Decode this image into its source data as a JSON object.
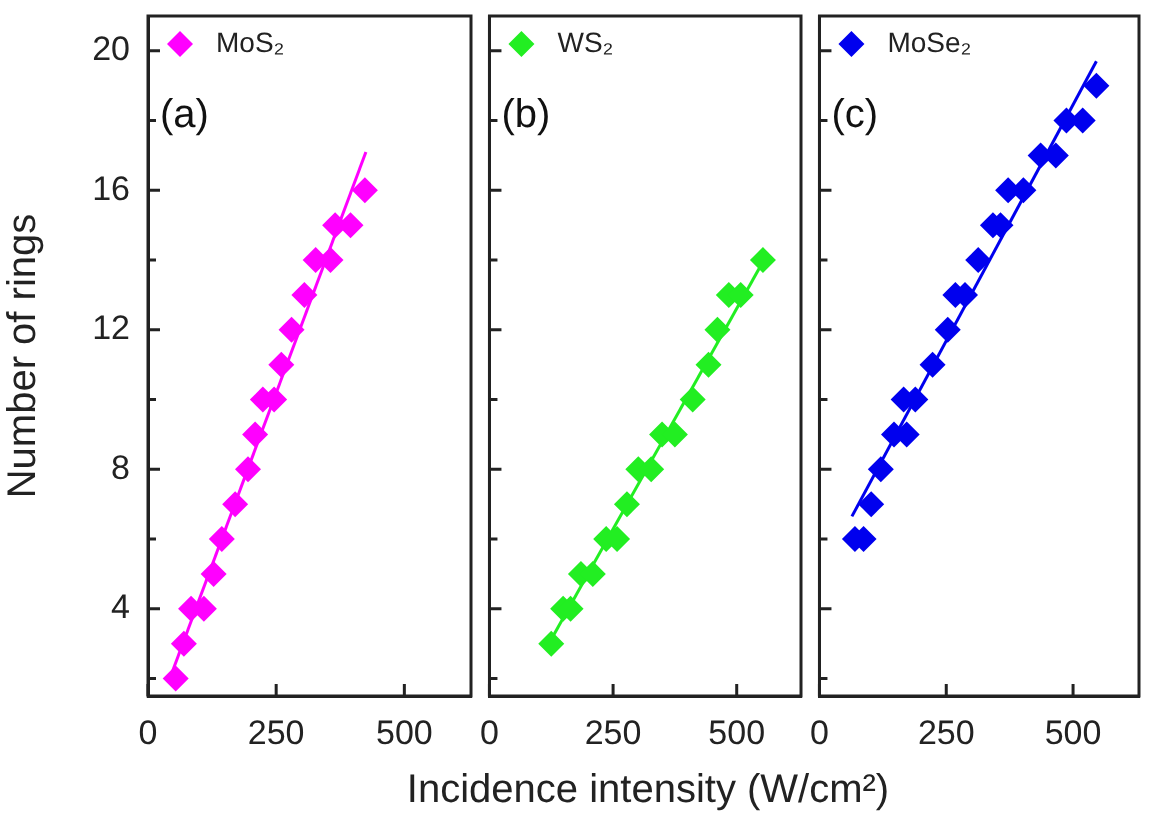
{
  "chart_data": [
    {
      "type": "scatter",
      "ylabel": "Number of rings",
      "xlim": [
        0,
        630
      ],
      "xticks": [
        0,
        250,
        500
      ],
      "ylim": [
        1.5,
        21
      ],
      "yticks": [
        {
          "value": 2,
          "label": null
        },
        4,
        {
          "value": 6,
          "label": null
        },
        8,
        {
          "value": 10,
          "label": null
        },
        12,
        {
          "value": 14,
          "label": null
        },
        16,
        {
          "value": 18,
          "label": null
        },
        20
      ],
      "grid": false,
      "legend": "top left",
      "marker": "diamond",
      "annotations": [
        "(a)"
      ],
      "series": [
        {
          "name": "MoS₂",
          "color": "#ff00ff",
          "x": [
            54,
            70,
            84,
            109,
            128,
            144,
            170,
            195,
            209,
            224,
            246,
            260,
            280,
            305,
            327,
            356,
            365,
            395,
            423
          ],
          "values": [
            2,
            3,
            4,
            4,
            5,
            6,
            7,
            8,
            9,
            10,
            10,
            11,
            12,
            13,
            14,
            14,
            15,
            15,
            16
          ]
        },
        {
          "type": "line",
          "marker": "none",
          "color": "#ff00ff",
          "x": [
            40,
            425
          ],
          "values": [
            1.9,
            17.1
          ]
        }
      ]
    },
    {
      "type": "scatter",
      "xlabel": "Incidence intensity (W/cm²)",
      "tick_labels": "x",
      "xlim": [
        0,
        630
      ],
      "xticks": [
        0,
        250,
        500
      ],
      "ylim": [
        1.5,
        21
      ],
      "yticks": [
        {
          "value": 2,
          "label": null
        },
        4,
        {
          "value": 6,
          "label": null
        },
        8,
        {
          "value": 10,
          "label": null
        },
        12,
        {
          "value": 14,
          "label": null
        },
        16,
        {
          "value": 18,
          "label": null
        },
        20
      ],
      "grid": false,
      "legend": "top left",
      "marker": "diamond",
      "annotations": [
        "(b)"
      ],
      "series": [
        {
          "name": "WS₂",
          "color": "#22ee22",
          "x": [
            125,
            149,
            164,
            185,
            209,
            236,
            258,
            278,
            301,
            327,
            349,
            375,
            411,
            443,
            461,
            484,
            508,
            553
          ],
          "values": [
            3,
            4,
            4,
            5,
            5,
            6,
            6,
            7,
            8,
            8,
            9,
            9,
            10,
            11,
            12,
            13,
            13,
            14
          ]
        },
        {
          "type": "line",
          "marker": "none",
          "color": "#22ee22",
          "x": [
            120,
            555
          ],
          "values": [
            3,
            14
          ]
        }
      ]
    },
    {
      "type": "scatter",
      "tick_labels": "x",
      "xlim": [
        0,
        630
      ],
      "xticks": [
        0,
        250,
        500
      ],
      "ylim": [
        1.5,
        21
      ],
      "yticks": [
        {
          "value": 2,
          "label": null
        },
        4,
        {
          "value": 6,
          "label": null
        },
        8,
        {
          "value": 10,
          "label": null
        },
        12,
        {
          "value": 14,
          "label": null
        },
        16,
        {
          "value": 18,
          "label": null
        },
        20
      ],
      "grid": false,
      "legend": "top left",
      "marker": "diamond",
      "annotations": [
        "(c)"
      ],
      "series": [
        {
          "name": "MoSe₂",
          "color": "#0000ee",
          "x": [
            70,
            87,
            102,
            121,
            147,
            172,
            166,
            189,
            223,
            253,
            268,
            287,
            313,
            342,
            357,
            372,
            402,
            436,
            466,
            487,
            519,
            546
          ],
          "values": [
            6,
            6,
            7,
            8,
            9,
            9,
            10,
            10,
            11,
            12,
            13,
            13,
            14,
            15,
            15,
            16,
            16,
            17,
            17,
            18,
            18,
            19
          ]
        },
        {
          "type": "line",
          "marker": "none",
          "color": "#0000ee",
          "x": [
            64,
            546
          ],
          "values": [
            6.65,
            19.7
          ]
        }
      ]
    }
  ]
}
